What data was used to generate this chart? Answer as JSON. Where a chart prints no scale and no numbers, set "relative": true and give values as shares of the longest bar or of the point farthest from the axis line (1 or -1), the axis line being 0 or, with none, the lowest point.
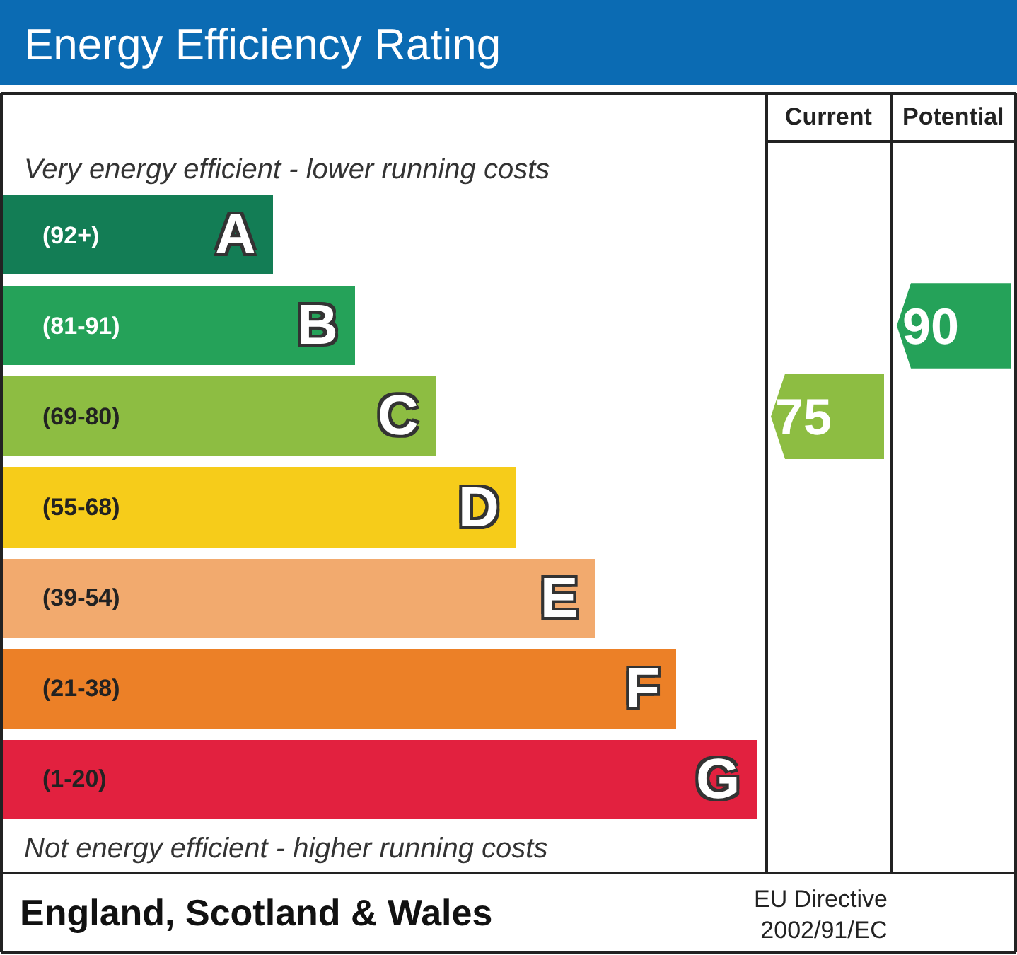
{
  "chart_data": {
    "type": "bar",
    "orientation": "horizontal",
    "relative": true,
    "title": "Energy Efficiency Rating",
    "categories": [
      "A",
      "B",
      "C",
      "D",
      "E",
      "F",
      "G"
    ],
    "values": [
      0.358,
      0.467,
      0.574,
      0.681,
      0.786,
      0.893,
      1.0
    ],
    "colors": [
      "#137d55",
      "#25a259",
      "#8dbd42",
      "#f6cc1a",
      "#f2aa6e",
      "#ec8027",
      "#e2213f"
    ],
    "annotations": [
      "Very energy efficient - lower running costs",
      "Not energy efficient - higher running costs",
      "Current",
      "Potential",
      "England, Scotland & Wales",
      "EU Directive\n2002/91/EC",
      "(92+)",
      "(81-91)",
      "(69-80)",
      "(55-68)",
      "(39-54)",
      "(21-38)",
      "(1-20)",
      "75",
      "90"
    ]
  }
}
